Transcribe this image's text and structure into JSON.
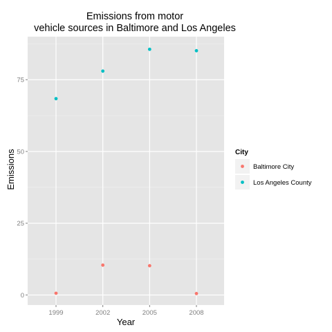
{
  "chart_data": {
    "type": "scatter",
    "title_lines": [
      "Emissions from motor",
      "vehicle sources in Baltimore and Los Angeles"
    ],
    "xlabel": "Year",
    "ylabel": "Emissions",
    "categories": [
      "1999",
      "2002",
      "2005",
      "2008"
    ],
    "yticks": [
      0,
      25,
      50,
      75
    ],
    "ylim": [
      -3.5,
      90
    ],
    "grid": true,
    "legend": {
      "title": "City",
      "placement": "right"
    },
    "series": [
      {
        "name": "Baltimore City",
        "color": "#F8766D",
        "values": [
          0.6,
          10.4,
          10.2,
          0.5
        ]
      },
      {
        "name": "Los Angeles County",
        "color": "#00BFC4",
        "values": [
          68.4,
          78.0,
          85.6,
          85.1
        ]
      }
    ]
  }
}
